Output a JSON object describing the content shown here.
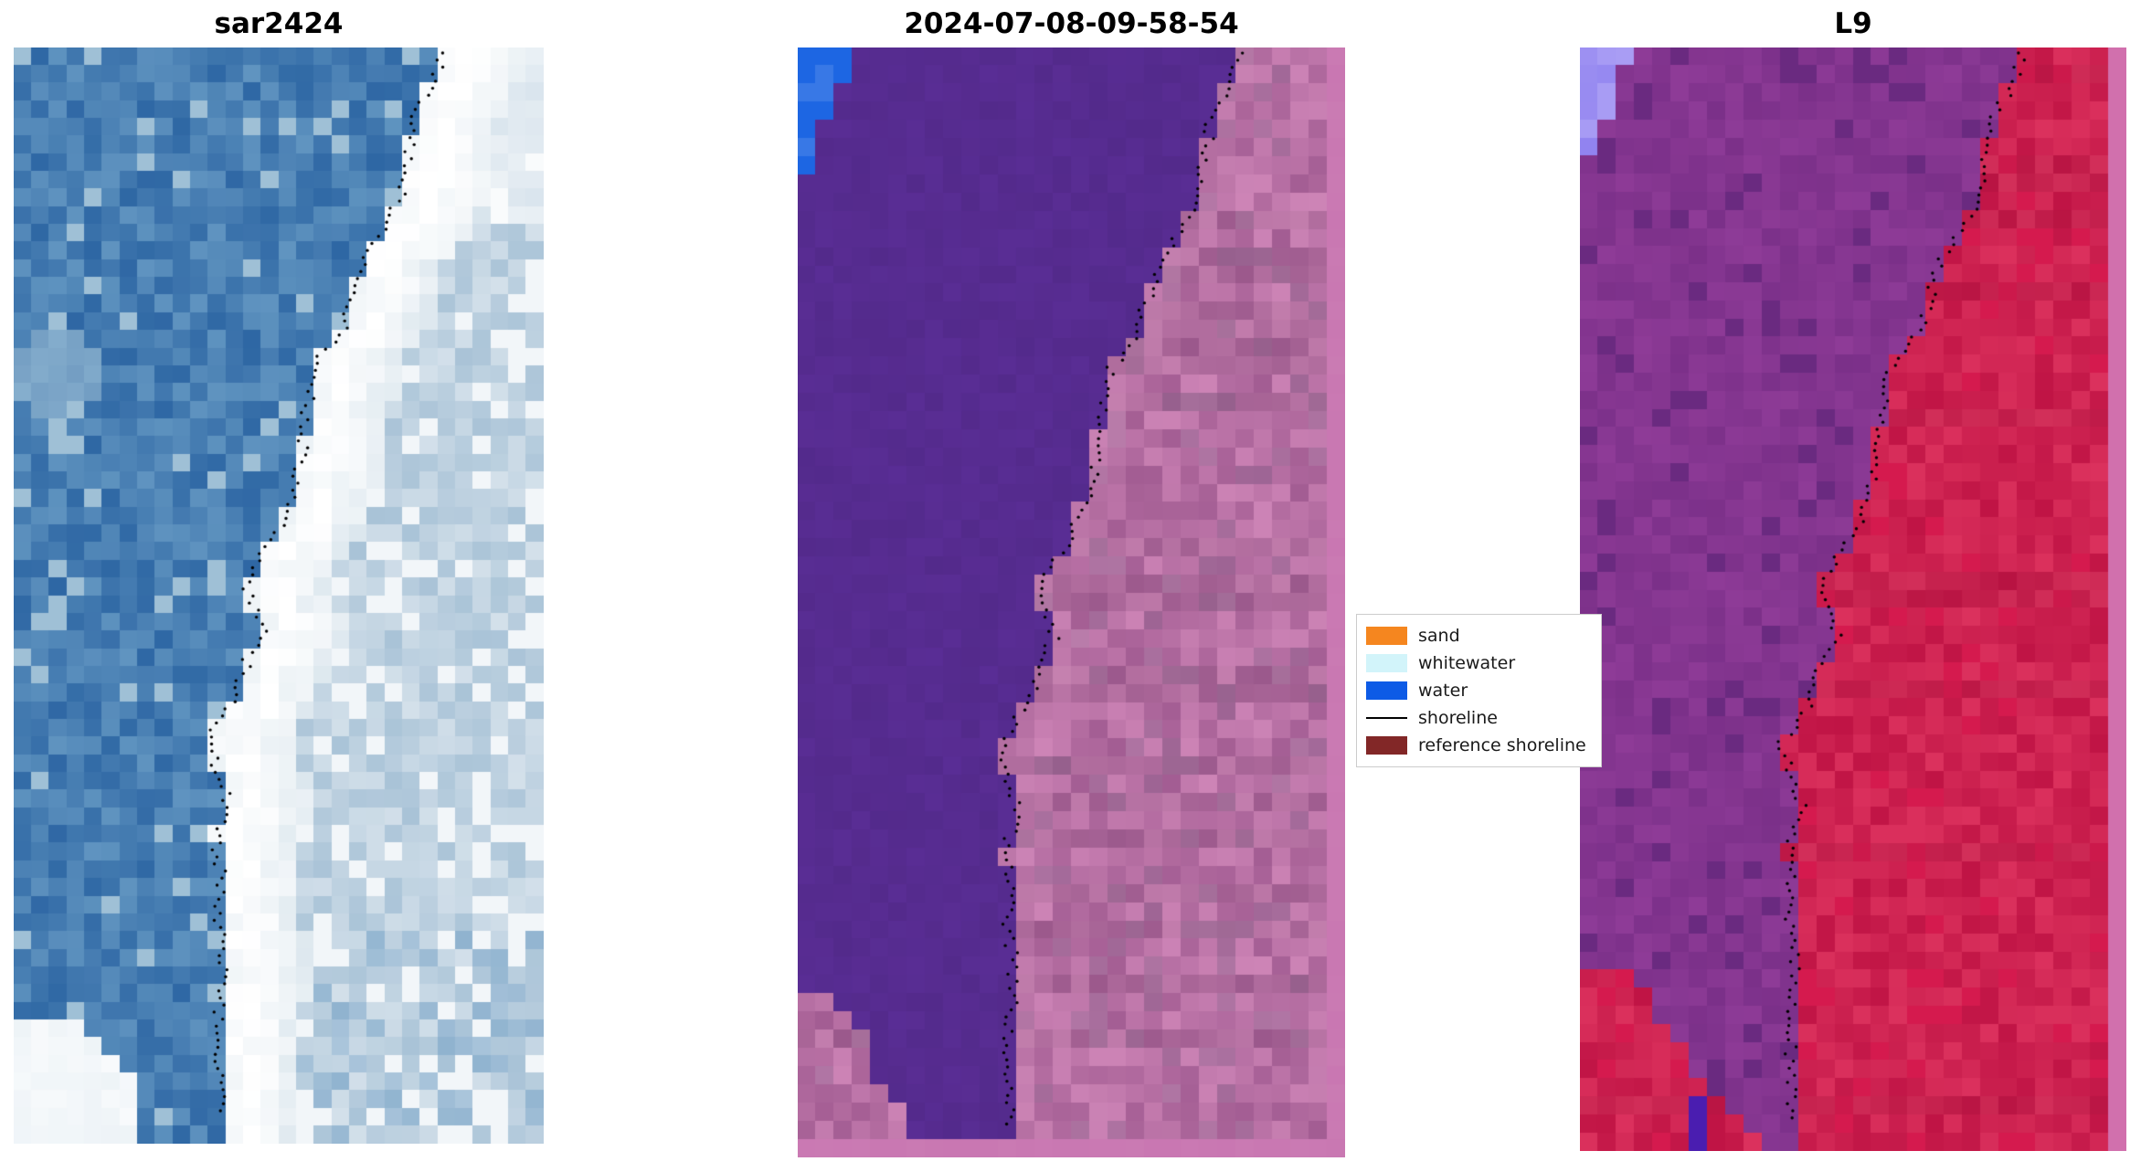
{
  "chart_data": {
    "type": "heatmap",
    "panels": [
      {
        "id": "sar",
        "title": "sar2424",
        "palette": {
          "water_dark": "#2e67a4",
          "water": "#4079b1",
          "water_light": "#6094c0",
          "water_patch": "#9fc0d6",
          "band_white": "#ffffff",
          "band_tint": "#dce7ee",
          "inland": "#a9c3d7",
          "inland_light": "#d3e0ea",
          "inland_white": "#f2f6f9",
          "cloud": "#edf3f7"
        }
      },
      {
        "id": "classified",
        "title": "2024-07-08-09-58-54",
        "palette": {
          "water": "#5b2e97",
          "water_dark": "#532a8b",
          "sand": "#bd6aa3",
          "sand_dark": "#a35d93",
          "sand_light": "#cd84b6",
          "sand_gray": "#996a95",
          "sand_rim": "#d893c0",
          "border": "#c977b2",
          "corner_water": "#1d66e3"
        }
      },
      {
        "id": "l9",
        "title": "L9",
        "palette": {
          "left": "#8e3b97",
          "left_dark": "#7b3089",
          "left_deep": "#6a2a80",
          "right": "#d51a4e",
          "right_dark": "#c01445",
          "right_light": "#e23863",
          "corner_violet": "#8e80ef",
          "corner_violet_light": "#aca0f5",
          "indigo_spot": "#4a1db0",
          "border": "#d170ad"
        }
      }
    ],
    "shoreline_path": [
      [
        0,
        0.81
      ],
      [
        0.03,
        0.795
      ],
      [
        0.06,
        0.76
      ],
      [
        0.09,
        0.745
      ],
      [
        0.13,
        0.735
      ],
      [
        0.16,
        0.71
      ],
      [
        0.19,
        0.66
      ],
      [
        0.22,
        0.645
      ],
      [
        0.26,
        0.62
      ],
      [
        0.29,
        0.57
      ],
      [
        0.33,
        0.555
      ],
      [
        0.37,
        0.545
      ],
      [
        0.4,
        0.53
      ],
      [
        0.44,
        0.5
      ],
      [
        0.47,
        0.455
      ],
      [
        0.5,
        0.44
      ],
      [
        0.53,
        0.47
      ],
      [
        0.56,
        0.44
      ],
      [
        0.6,
        0.41
      ],
      [
        0.63,
        0.37
      ],
      [
        0.66,
        0.385
      ],
      [
        0.69,
        0.405
      ],
      [
        0.72,
        0.38
      ],
      [
        0.75,
        0.39
      ],
      [
        0.79,
        0.385
      ],
      [
        0.83,
        0.395
      ],
      [
        0.87,
        0.39
      ],
      [
        0.91,
        0.385
      ],
      [
        0.95,
        0.39
      ],
      [
        1,
        0.385
      ]
    ],
    "shoreline_style": {
      "color": "#000000",
      "dot_radius_px": 1.7,
      "dots_per_panel": 150
    },
    "legend": {
      "items": [
        {
          "label": "sand",
          "color": "#f5861f",
          "swatch": "patch"
        },
        {
          "label": "whitewater",
          "color": "#d2f4fa",
          "swatch": "patch"
        },
        {
          "label": "water",
          "color": "#0d5be6",
          "swatch": "patch"
        },
        {
          "label": "shoreline",
          "color": "#000000",
          "swatch": "line"
        },
        {
          "label": "reference shoreline",
          "color": "#822727",
          "swatch": "patch"
        }
      ]
    }
  }
}
